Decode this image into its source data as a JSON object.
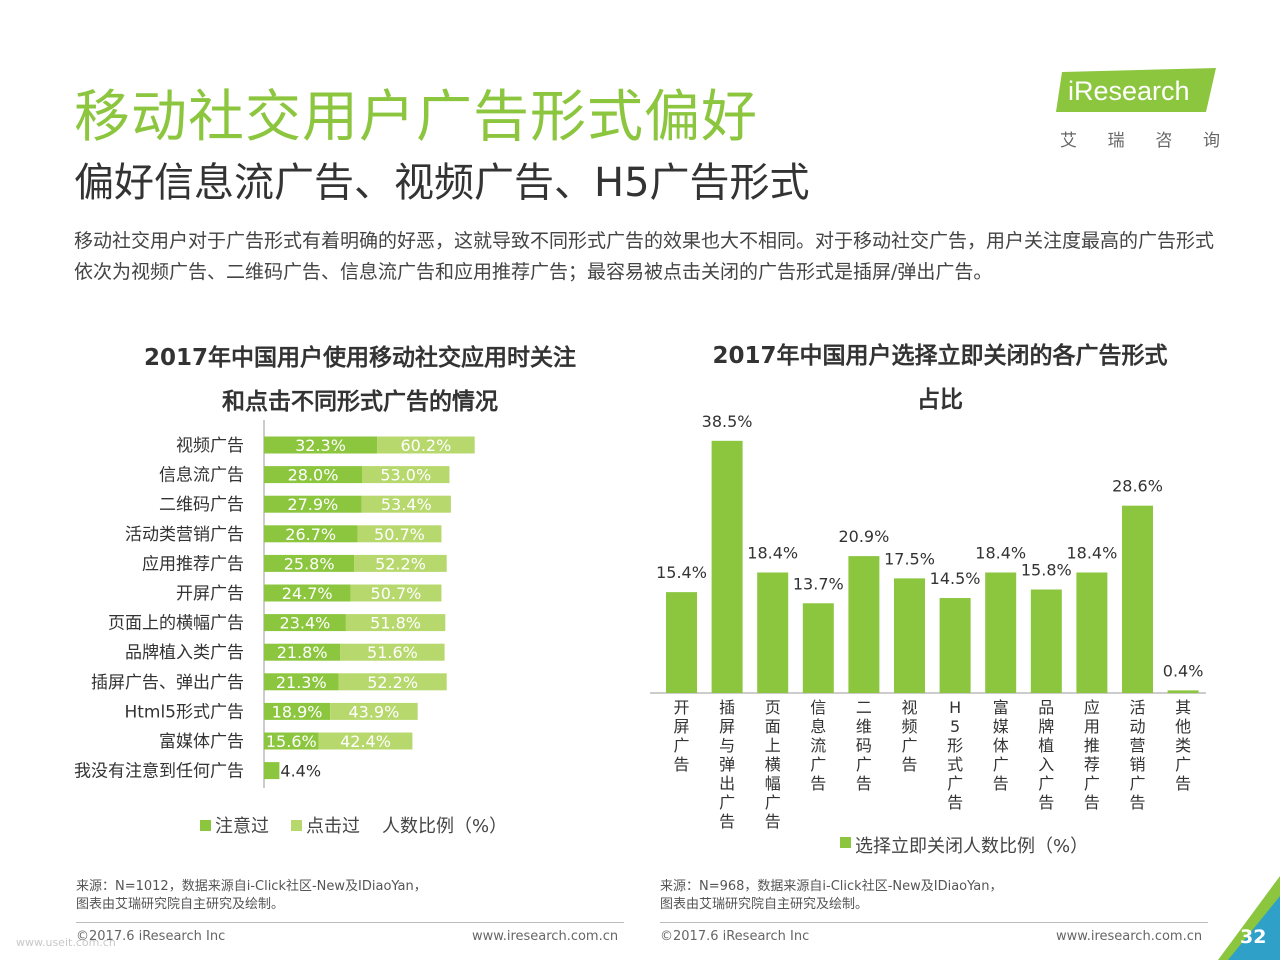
{
  "header": {
    "title": "移动社交用户广告形式偏好",
    "subtitle": "偏好信息流广告、视频广告、H5广告形式",
    "description": "移动社交用户对于广告形式有着明确的好恶，这就导致不同形式广告的效果也大不相同。对于移动社交广告，用户关注度最高的广告形式依次为视频广告、二维码广告、信息流广告和应用推荐广告；最容易被点击关闭的广告形式是插屏/弹出广告。"
  },
  "logo": {
    "brand": "iResearch",
    "cn": [
      "艾",
      "瑞",
      "咨",
      "询"
    ],
    "accent": "#8cc63f"
  },
  "colors": {
    "green_dark": "#8cc63f",
    "green_light": "#b7d86d",
    "title_green": "#8cc63f"
  },
  "left": {
    "title_line1": "2017年中国用户使用移动社交应用时关注",
    "title_line2": "和点击不同形式广告的情况",
    "legend_a": "注意过",
    "legend_b": "点击过",
    "legend_unit": "人数比例（%）",
    "source_line1": "来源：N=1012，数据来源自i-Click社区-New及IDiaoYan，",
    "source_line2": "图表由艾瑞研究院自主研究及绘制。",
    "copyright": "©2017.6 iResearch Inc",
    "url": "www.iresearch.com.cn"
  },
  "right": {
    "title_line1": "2017年中国用户选择立即关闭的各广告形式",
    "title_line2": "占比",
    "legend": "选择立即关闭人数比例（%）",
    "source_line1": "来源：N=968，数据来源自i-Click社区-New及IDiaoYan，",
    "source_line2": "图表由艾瑞研究院自主研究及绘制。",
    "copyright": "©2017.6 iResearch Inc",
    "url": "www.iresearch.com.cn"
  },
  "page_number": "32",
  "watermark": "www.useit.com.cn",
  "chart_data": [
    {
      "type": "bar",
      "orientation": "horizontal",
      "stacked": true,
      "title": "2017年中国用户使用移动社交应用时关注和点击不同形式广告的情况",
      "categories": [
        "视频广告",
        "信息流广告",
        "二维码广告",
        "活动类营销广告",
        "应用推荐广告",
        "开屏广告",
        "页面上的横幅广告",
        "品牌植入类广告",
        "插屏广告、弹出广告",
        "Html5形式广告",
        "富媒体广告",
        "我没有注意到任何广告"
      ],
      "series": [
        {
          "name": "注意过",
          "values": [
            32.3,
            28.0,
            27.9,
            26.7,
            25.8,
            24.7,
            23.4,
            21.8,
            21.3,
            18.9,
            15.6,
            4.4
          ]
        },
        {
          "name": "点击过",
          "values": [
            60.2,
            53.0,
            53.4,
            50.7,
            52.2,
            50.7,
            51.8,
            51.6,
            52.2,
            43.9,
            42.4,
            null
          ]
        }
      ],
      "value_labels_a": [
        "32.3%",
        "28.0%",
        "27.9%",
        "26.7%",
        "25.8%",
        "24.7%",
        "23.4%",
        "21.8%",
        "21.3%",
        "18.9%",
        "15.6%",
        "4.4%"
      ],
      "value_labels_b": [
        "60.2%",
        "53.0%",
        "53.4%",
        "50.7%",
        "52.2%",
        "50.7%",
        "51.8%",
        "51.6%",
        "52.2%",
        "43.9%",
        "42.4%",
        ""
      ],
      "legend": "bottom",
      "grid": false
    },
    {
      "type": "bar",
      "orientation": "vertical",
      "title": "2017年中国用户选择立即关闭的各广告形式占比",
      "categories": [
        "开屏广告",
        "插屏与弹出广告",
        "页面上横幅广告",
        "信息流广告",
        "二维码广告",
        "视频广告",
        "H5形式广告",
        "富媒体广告",
        "品牌植入广告",
        "应用推荐广告",
        "活动营销广告",
        "其他类广告"
      ],
      "series": [
        {
          "name": "选择立即关闭人数比例（%）",
          "values": [
            15.4,
            38.5,
            18.4,
            13.7,
            20.9,
            17.5,
            14.5,
            18.4,
            15.8,
            18.4,
            28.6,
            0.4
          ]
        }
      ],
      "value_labels": [
        "15.4%",
        "38.5%",
        "18.4%",
        "13.7%",
        "20.9%",
        "17.5%",
        "14.5%",
        "18.4%",
        "15.8%",
        "18.4%",
        "28.6%",
        "0.4%"
      ],
      "legend": "bottom",
      "grid": false
    }
  ]
}
